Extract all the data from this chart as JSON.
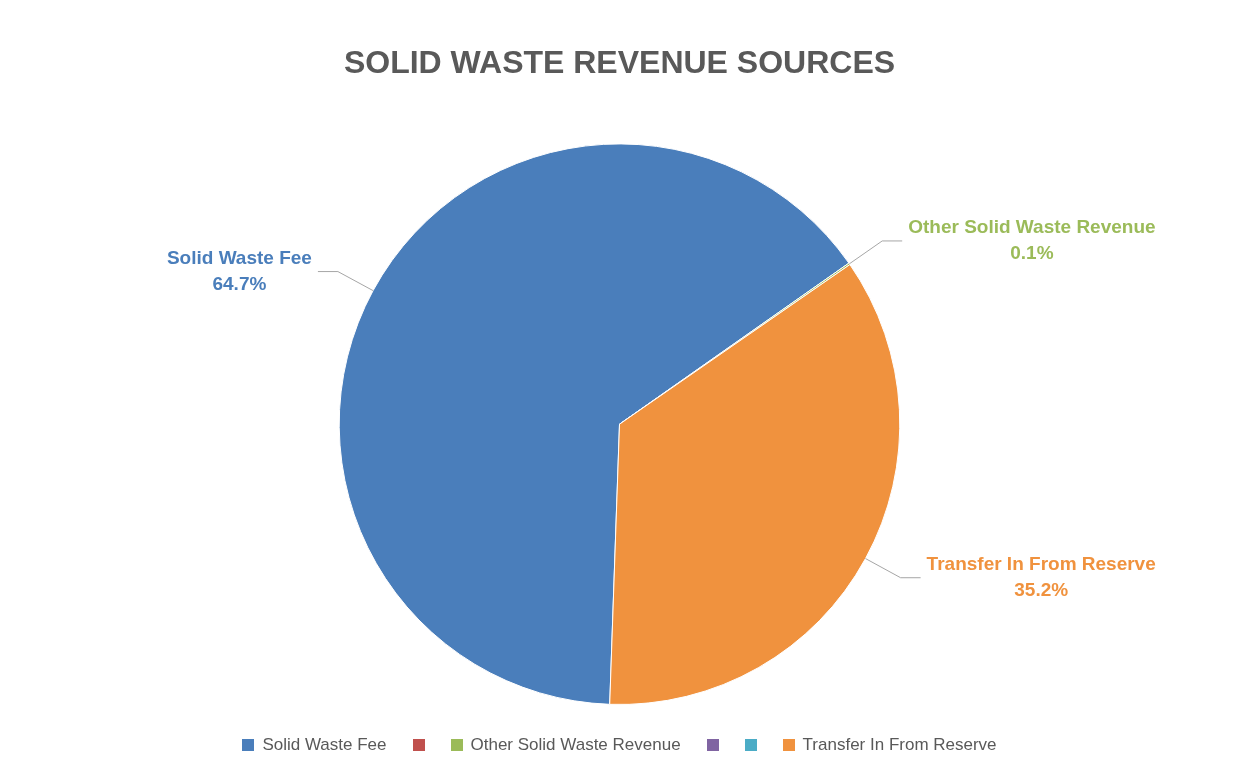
{
  "chart_data": {
    "type": "pie",
    "title": "SOLID WASTE REVENUE SOURCES",
    "categories": [
      "Solid Waste Fee",
      null,
      "Other Solid Waste Revenue",
      null,
      null,
      "Transfer In From Reserve"
    ],
    "values": [
      64.7,
      0,
      0.1,
      0,
      0,
      35.2
    ],
    "value_labels": [
      "64.7%",
      null,
      "0.1%",
      null,
      null,
      "35.2%"
    ],
    "colors": [
      "#4a7ebb",
      "#c0504d",
      "#9bbb59",
      "#8064a2",
      "#4bacc6",
      "#f0923e"
    ],
    "legend": "bottom"
  }
}
